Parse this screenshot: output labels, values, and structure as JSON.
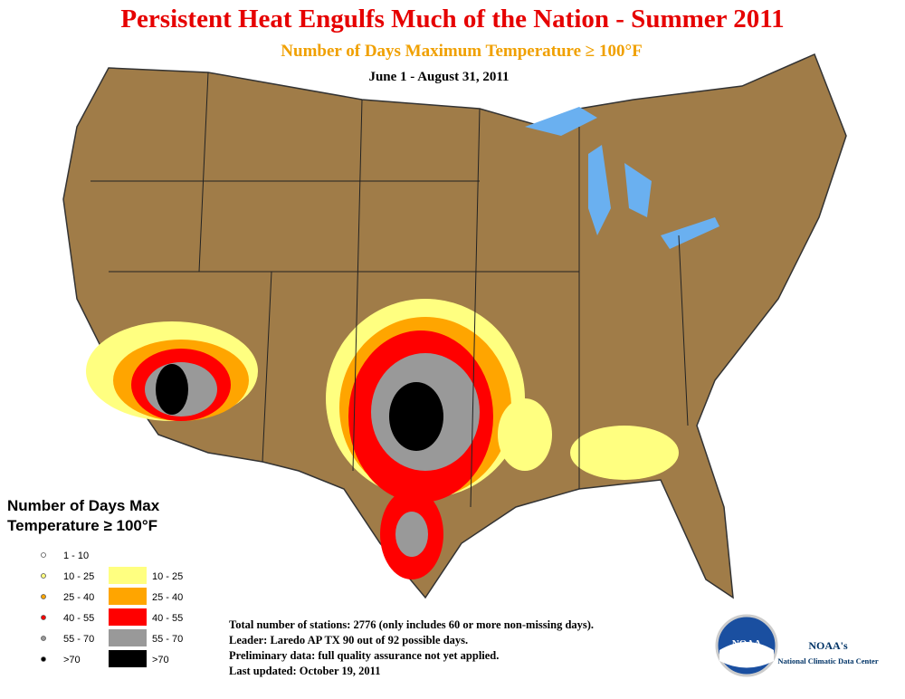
{
  "header": {
    "title": "Persistent Heat Engulfs Much of the Nation - Summer 2011",
    "subtitle": "Number of Days Maximum Temperature ≥ 100°F",
    "date_range": "June 1 - August 31, 2011"
  },
  "legend": {
    "title_lines": [
      "Number of Days Max",
      "Temperature ≥ 100°F"
    ],
    "items": [
      {
        "dot_label": "1 - 10",
        "color": "#ffffff"
      },
      {
        "dot_label": "10 - 25",
        "box_label": "10 - 25",
        "color": "#ffff80"
      },
      {
        "dot_label": "25 - 40",
        "box_label": "25 - 40",
        "color": "#ffa500"
      },
      {
        "dot_label": "40 - 55",
        "box_label": "40 - 55",
        "color": "#ff0000"
      },
      {
        "dot_label": "55 - 70",
        "box_label": "55 - 70",
        "color": "#999999"
      },
      {
        "dot_label": ">70",
        "box_label": ">70",
        "color": "#000000"
      }
    ]
  },
  "notes": [
    "Total number of stations: 2776 (only includes 60 or more non-missing days).",
    "Leader: Laredo AP TX 90 out of 92 possible days.",
    "Preliminary data: full quality assurance not yet applied.",
    "Last updated: October 19, 2011"
  ],
  "logo": {
    "mark": "NOAA",
    "name": "NOAA's",
    "org": "National Climatic Data Center"
  }
}
